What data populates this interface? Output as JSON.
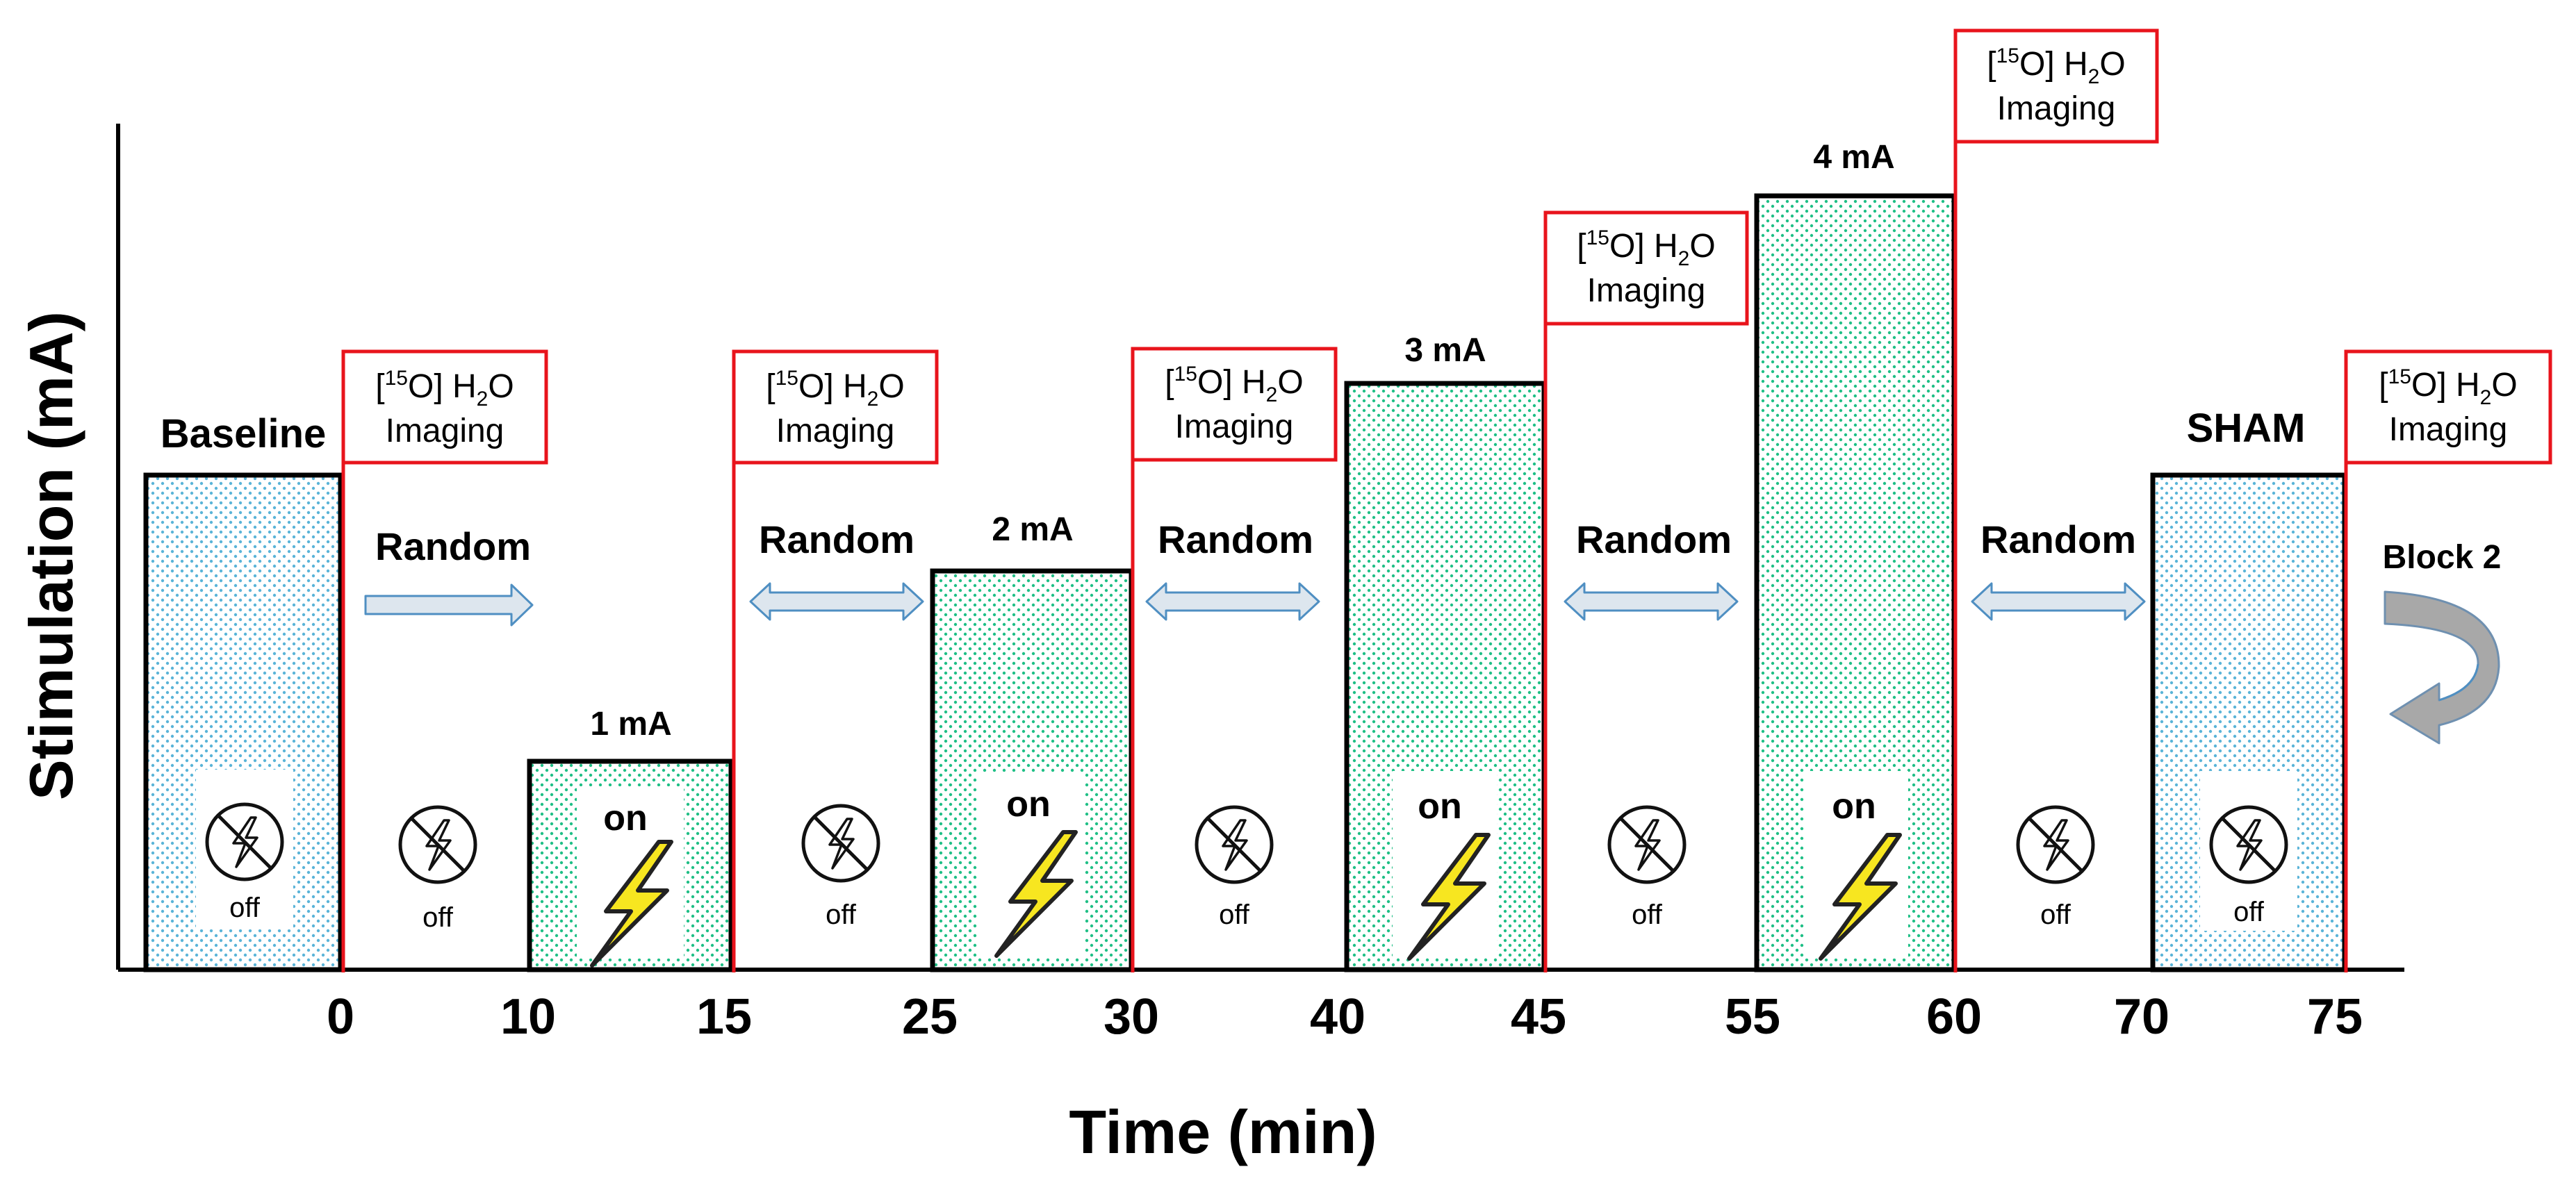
{
  "axes": {
    "y_label": "Stimulation (mA)",
    "x_label": "Time (min)",
    "ticks": [
      "0",
      "10",
      "15",
      "25",
      "30",
      "40",
      "45",
      "55",
      "60",
      "70",
      "75"
    ]
  },
  "blocks": {
    "baseline": {
      "label": "Baseline",
      "state": "off",
      "current_mA": null
    },
    "b1": {
      "label": "1 mA",
      "state": "on",
      "current_mA": 1
    },
    "b2": {
      "label": "2 mA",
      "state": "on",
      "current_mA": 2
    },
    "b3": {
      "label": "3 mA",
      "state": "on",
      "current_mA": 3
    },
    "b4": {
      "label": "4 mA",
      "state": "on",
      "current_mA": 4
    },
    "sham": {
      "label": "SHAM",
      "state": "off",
      "current_mA": null
    }
  },
  "gaps": {
    "g1": {
      "state": "off"
    },
    "g2": {
      "state": "off"
    },
    "g3": {
      "state": "off"
    },
    "g4": {
      "state": "off"
    },
    "g5": {
      "state": "off"
    }
  },
  "imaging": {
    "line1_pre": "[",
    "isotope": "15",
    "line1_mid": "O] H",
    "subscript": "2",
    "line1_post": "O",
    "line2": "Imaging"
  },
  "random_label": "Random",
  "block2_label": "Block 2",
  "colors": {
    "axis": "#000000",
    "bar_border": "#000000",
    "imaging_red": "#e8141c",
    "bar_fill": "#ffffff",
    "dots_blue": "#5ab4d8",
    "dots_green": "#1fbf86",
    "arrow_fill": "#dde6ee",
    "arrow_stroke": "#4f8fc2",
    "bolt_yellow": "#f7e620",
    "curve_gray": "#a8a8a8"
  }
}
